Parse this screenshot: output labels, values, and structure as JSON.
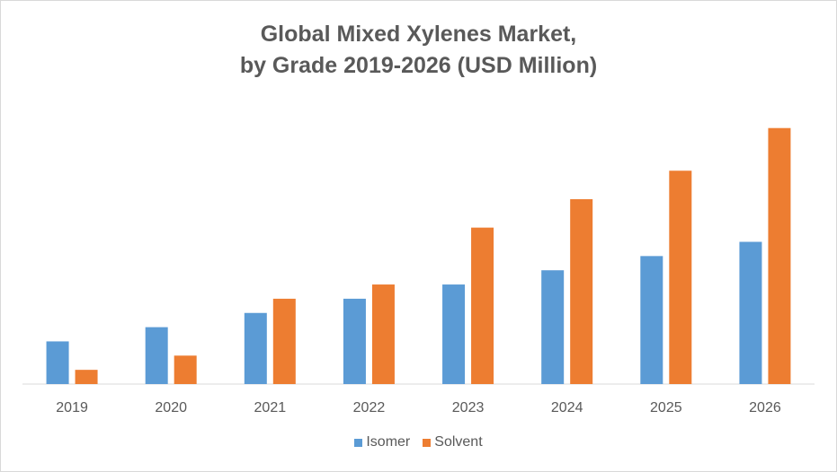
{
  "chart_data": {
    "type": "bar",
    "title_line1": "Global Mixed Xylenes Market,",
    "title_line2": "by Grade 2019-2026 (USD Million)",
    "xlabel": "",
    "ylabel": "",
    "categories": [
      "2019",
      "2020",
      "2021",
      "2022",
      "2023",
      "2024",
      "2025",
      "2026"
    ],
    "series": [
      {
        "name": "Isomer",
        "color": "#5B9BD5",
        "values": [
          3,
          4,
          5,
          6,
          7,
          8,
          9,
          10
        ]
      },
      {
        "name": "Solvent",
        "color": "#ED7D31",
        "values": [
          1,
          2,
          6,
          7,
          11,
          13,
          15,
          18
        ]
      }
    ],
    "ylim": [
      0,
      20
    ],
    "grid": false,
    "legend": "bottom"
  }
}
